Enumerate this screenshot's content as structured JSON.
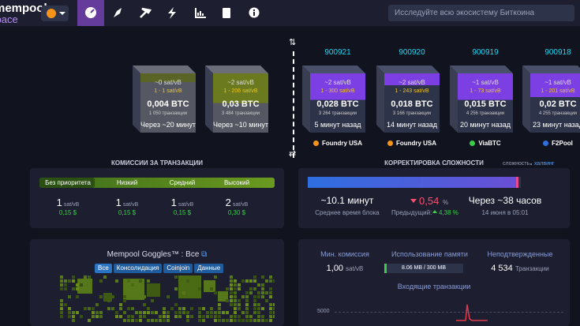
{
  "header": {
    "logo_top": "mempool",
    "logo_bottom": "space",
    "search_placeholder": "Исследуйте всю экосистему Биткоина"
  },
  "projected_blocks": [
    {
      "median_fee": "~0 sat/vB",
      "fee_range": "1 - 1 sat/vB",
      "total": "0,004 BTC",
      "tx_count": "1 050 транзакции",
      "eta": "Через ~20 минут"
    },
    {
      "median_fee": "~2 sat/vB",
      "fee_range": "1 - 206 sat/vB",
      "total": "0,03 BTC",
      "tx_count": "3 484 транзакции",
      "eta": "Через ~10 минут"
    }
  ],
  "mined_blocks": [
    {
      "height": "900921",
      "median_fee": "~2 sat/vB",
      "fee_range": "1 - 300 sat/vB",
      "total": "0,028 BTC",
      "tx_count": "3 264 транзакции",
      "age": "5 минут назад",
      "pool": "Foundry USA"
    },
    {
      "height": "900920",
      "median_fee": "~2 sat/vB",
      "fee_range": "1 - 243 sat/vB",
      "total": "0,018 BTC",
      "tx_count": "3 166 транзакции",
      "age": "14 минут назад",
      "pool": "Foundry USA"
    },
    {
      "height": "900919",
      "median_fee": "~1 sat/vB",
      "fee_range": "1 - 73 sat/vB",
      "total": "0,015 BTC",
      "tx_count": "4 256 транзакции",
      "age": "20 минут назад",
      "pool": "ViaBTC"
    },
    {
      "height": "900918",
      "median_fee": "~1 sat/vB",
      "fee_range": "1 - 201 sat/vB",
      "total": "0,02 BTC",
      "tx_count": "4 255 транзакции",
      "age": "23 минут назад",
      "pool": "F2Pool"
    }
  ],
  "fees": {
    "title": "КОМИССИИ ЗА ТРАНЗАКЦИИ",
    "levels": [
      {
        "label": "Без приоритета",
        "value": "1",
        "unit": "sat/vB",
        "usd": "0,15 $"
      },
      {
        "label": "Низкий",
        "value": "1",
        "unit": "sat/vB",
        "usd": "0,15 $"
      },
      {
        "label": "Средний",
        "value": "1",
        "unit": "sat/vB",
        "usd": "0,15 $"
      },
      {
        "label": "Высокий",
        "value": "2",
        "unit": "sat/vB",
        "usd": "0,30 $"
      }
    ]
  },
  "difficulty": {
    "title": "КОРРЕКТИРОВКА СЛОЖНОСТИ",
    "toggle_left": "сложность",
    "toggle_right": "халвинг",
    "avg_block_time": "~10.1 минут",
    "avg_label": "Среднее время блока",
    "change": "0,54",
    "change_unit": "%",
    "previous_label": "Предыдущий:",
    "previous": "4,38 %",
    "eta": "Через ~38 часов",
    "eta_date": "14 июня в 05:01"
  },
  "goggles": {
    "title": "Mempool Goggles™ : Все",
    "tabs": [
      "Все",
      "Консолидация",
      "Coinjoin",
      "Данные"
    ]
  },
  "stats": {
    "min_fee_label": "Мин. комиссия",
    "min_fee": "1,00",
    "min_fee_unit": "sat/vB",
    "memory_label": "Использование памяти",
    "memory": "8.06 MB / 300 MB",
    "unconfirmed_label": "Неподтвержденные",
    "unconfirmed": "4 534",
    "unconfirmed_unit": "Транзакции",
    "incoming_title": "Входящие транзакции",
    "incoming_axis_tick": "5000"
  }
}
